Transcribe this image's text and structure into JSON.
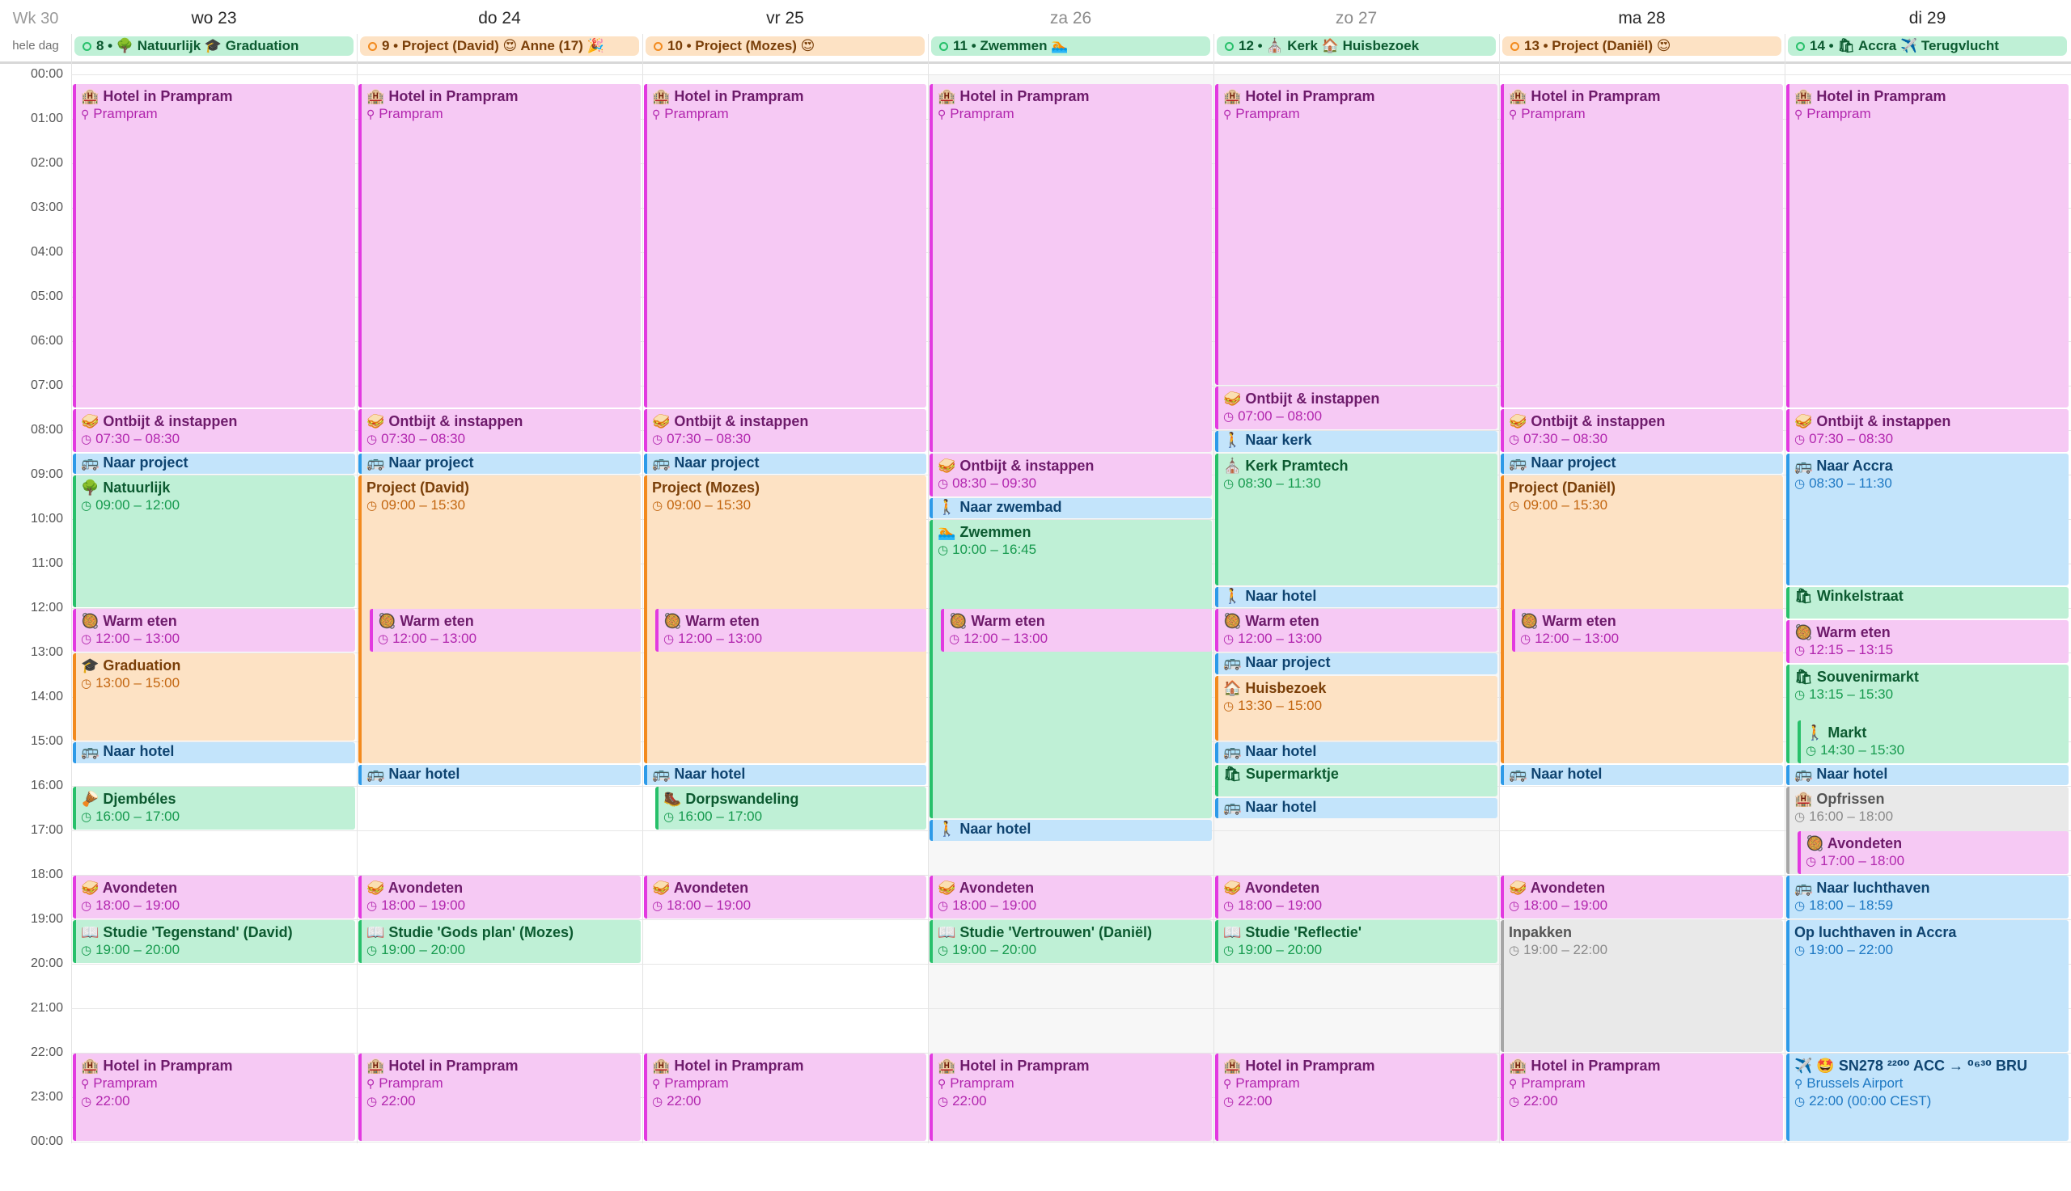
{
  "week_label": "Wk 30",
  "allday_label": "hele dag",
  "hour_labels": [
    "00:00",
    "01:00",
    "02:00",
    "03:00",
    "04:00",
    "05:00",
    "06:00",
    "07:00",
    "08:00",
    "09:00",
    "10:00",
    "11:00",
    "12:00",
    "13:00",
    "14:00",
    "15:00",
    "16:00",
    "17:00",
    "18:00",
    "19:00",
    "20:00",
    "21:00",
    "22:00",
    "23:00",
    "00:00"
  ],
  "colors": {
    "pink": "#f6c9f4",
    "orange": "#fde2c4",
    "green": "#bff0d6",
    "blue": "#c3e4fb",
    "gray": "#e9e9e9"
  },
  "days": [
    {
      "label": "wo 23",
      "weekend": false
    },
    {
      "label": "do 24",
      "weekend": false
    },
    {
      "label": "vr 25",
      "weekend": false
    },
    {
      "label": "za 26",
      "weekend": true
    },
    {
      "label": "zo 27",
      "weekend": true
    },
    {
      "label": "ma 28",
      "weekend": false
    },
    {
      "label": "di 29",
      "weekend": false
    }
  ],
  "allday_events": [
    {
      "day": 0,
      "color": "green",
      "title": "8 • 🌳 Natuurlijk 🎓 Graduation"
    },
    {
      "day": 1,
      "color": "orange",
      "title": "9 • Project (David) 😍 Anne (17) 🎉"
    },
    {
      "day": 2,
      "color": "orange",
      "title": "10 • Project (Mozes) 😍"
    },
    {
      "day": 3,
      "color": "green",
      "title": "11 • Zwemmen 🏊"
    },
    {
      "day": 4,
      "color": "green",
      "title": "12 • ⛪ Kerk 🏠 Huisbezoek"
    },
    {
      "day": 5,
      "color": "orange",
      "title": "13 • Project (Daniël) 😍"
    },
    {
      "day": 6,
      "color": "green",
      "title": "14 • 🛍 Accra ✈️ Terugvlucht"
    }
  ],
  "events": [
    {
      "day": 0,
      "start": 0.2,
      "end": 7.5,
      "color": "pink",
      "title": "🏨 Hotel in Prampram",
      "sub": "Prampram",
      "loc": true
    },
    {
      "day": 0,
      "start": 7.5,
      "end": 8.5,
      "color": "pink",
      "title": "🥪 Ontbijt & instappen",
      "sub": "07:30 – 08:30"
    },
    {
      "day": 0,
      "start": 8.5,
      "end": 9.0,
      "color": "blue",
      "title": "🚌 Naar project"
    },
    {
      "day": 0,
      "start": 9.0,
      "end": 12.0,
      "color": "green",
      "title": "🌳 Natuurlijk",
      "sub": "09:00 – 12:00"
    },
    {
      "day": 0,
      "start": 12.0,
      "end": 13.0,
      "color": "pink",
      "title": "🥘 Warm eten",
      "sub": "12:00 – 13:00"
    },
    {
      "day": 0,
      "start": 13.0,
      "end": 15.0,
      "color": "orange",
      "title": "🎓 Graduation",
      "sub": "13:00 – 15:00"
    },
    {
      "day": 0,
      "start": 15.0,
      "end": 15.5,
      "color": "blue",
      "title": "🚌 Naar hotel"
    },
    {
      "day": 0,
      "start": 16.0,
      "end": 17.0,
      "color": "green",
      "title": "🪘 Djembéles",
      "sub": "16:00 – 17:00"
    },
    {
      "day": 0,
      "start": 18.0,
      "end": 19.0,
      "color": "pink",
      "title": "🥪 Avondeten",
      "sub": "18:00 – 19:00"
    },
    {
      "day": 0,
      "start": 19.0,
      "end": 20.0,
      "color": "green",
      "title": "📖 Studie 'Tegenstand' (David)",
      "sub": "19:00 – 20:00"
    },
    {
      "day": 0,
      "start": 22.0,
      "end": 24.0,
      "color": "pink",
      "title": "🏨 Hotel in Prampram",
      "sub": "Prampram",
      "sub2": "22:00",
      "loc": true
    },
    {
      "day": 1,
      "start": 0.2,
      "end": 7.5,
      "color": "pink",
      "title": "🏨 Hotel in Prampram",
      "sub": "Prampram",
      "loc": true
    },
    {
      "day": 1,
      "start": 7.5,
      "end": 8.5,
      "color": "pink",
      "title": "🥪 Ontbijt & instappen",
      "sub": "07:30 – 08:30"
    },
    {
      "day": 1,
      "start": 8.5,
      "end": 9.0,
      "color": "blue",
      "title": "🚌 Naar project"
    },
    {
      "day": 1,
      "start": 9.0,
      "end": 15.5,
      "color": "orange",
      "title": "Project (David)",
      "sub": "09:00 – 15:30"
    },
    {
      "day": 1,
      "start": 12.0,
      "end": 13.0,
      "color": "pink",
      "title": "🥘 Warm eten",
      "sub": "12:00 – 13:00",
      "inset": true
    },
    {
      "day": 1,
      "start": 15.5,
      "end": 16.0,
      "color": "blue",
      "title": "🚌 Naar hotel"
    },
    {
      "day": 1,
      "start": 18.0,
      "end": 19.0,
      "color": "pink",
      "title": "🥪 Avondeten",
      "sub": "18:00 – 19:00"
    },
    {
      "day": 1,
      "start": 19.0,
      "end": 20.0,
      "color": "green",
      "title": "📖 Studie 'Gods plan' (Mozes)",
      "sub": "19:00 – 20:00"
    },
    {
      "day": 1,
      "start": 22.0,
      "end": 24.0,
      "color": "pink",
      "title": "🏨 Hotel in Prampram",
      "sub": "Prampram",
      "sub2": "22:00",
      "loc": true
    },
    {
      "day": 2,
      "start": 0.2,
      "end": 7.5,
      "color": "pink",
      "title": "🏨 Hotel in Prampram",
      "sub": "Prampram",
      "loc": true
    },
    {
      "day": 2,
      "start": 7.5,
      "end": 8.5,
      "color": "pink",
      "title": "🥪 Ontbijt & instappen",
      "sub": "07:30 – 08:30"
    },
    {
      "day": 2,
      "start": 8.5,
      "end": 9.0,
      "color": "blue",
      "title": "🚌 Naar project"
    },
    {
      "day": 2,
      "start": 9.0,
      "end": 15.5,
      "color": "orange",
      "title": "Project (Mozes)",
      "sub": "09:00 – 15:30"
    },
    {
      "day": 2,
      "start": 12.0,
      "end": 13.0,
      "color": "pink",
      "title": "🥘 Warm eten",
      "sub": "12:00 – 13:00",
      "inset": true
    },
    {
      "day": 2,
      "start": 15.5,
      "end": 16.0,
      "color": "blue",
      "title": "🚌 Naar hotel"
    },
    {
      "day": 2,
      "start": 16.0,
      "end": 17.0,
      "color": "green",
      "title": "🥾 Dorpswandeling",
      "sub": "16:00 – 17:00",
      "inset": true
    },
    {
      "day": 2,
      "start": 18.0,
      "end": 19.0,
      "color": "pink",
      "title": "🥪 Avondeten",
      "sub": "18:00 – 19:00"
    },
    {
      "day": 2,
      "start": 22.0,
      "end": 24.0,
      "color": "pink",
      "title": "🏨 Hotel in Prampram",
      "sub": "Prampram",
      "sub2": "22:00",
      "loc": true
    },
    {
      "day": 3,
      "start": 0.2,
      "end": 8.5,
      "color": "pink",
      "title": "🏨 Hotel in Prampram",
      "sub": "Prampram",
      "loc": true
    },
    {
      "day": 3,
      "start": 8.5,
      "end": 9.5,
      "color": "pink",
      "title": "🥪 Ontbijt & instappen",
      "sub": "08:30 – 09:30"
    },
    {
      "day": 3,
      "start": 9.5,
      "end": 10.0,
      "color": "blue",
      "title": "🚶 Naar zwembad"
    },
    {
      "day": 3,
      "start": 10.0,
      "end": 16.75,
      "color": "green",
      "title": "🏊 Zwemmen",
      "sub": "10:00 – 16:45"
    },
    {
      "day": 3,
      "start": 12.0,
      "end": 13.0,
      "color": "pink",
      "title": "🥘 Warm eten",
      "sub": "12:00 – 13:00",
      "inset": true
    },
    {
      "day": 3,
      "start": 16.75,
      "end": 17.25,
      "color": "blue",
      "title": "🚶 Naar hotel"
    },
    {
      "day": 3,
      "start": 18.0,
      "end": 19.0,
      "color": "pink",
      "title": "🥪 Avondeten",
      "sub": "18:00 – 19:00"
    },
    {
      "day": 3,
      "start": 19.0,
      "end": 20.0,
      "color": "green",
      "title": "📖 Studie 'Vertrouwen' (Daniël)",
      "sub": "19:00 – 20:00"
    },
    {
      "day": 3,
      "start": 22.0,
      "end": 24.0,
      "color": "pink",
      "title": "🏨 Hotel in Prampram",
      "sub": "Prampram",
      "sub2": "22:00",
      "loc": true
    },
    {
      "day": 4,
      "start": 0.2,
      "end": 7.0,
      "color": "pink",
      "title": "🏨 Hotel in Prampram",
      "sub": "Prampram",
      "loc": true
    },
    {
      "day": 4,
      "start": 7.0,
      "end": 8.0,
      "color": "pink",
      "title": "🥪 Ontbijt & instappen",
      "sub": "07:00 – 08:00"
    },
    {
      "day": 4,
      "start": 8.0,
      "end": 8.5,
      "color": "blue",
      "title": "🚶 Naar kerk"
    },
    {
      "day": 4,
      "start": 8.5,
      "end": 11.5,
      "color": "green",
      "title": "⛪ Kerk Pramtech",
      "sub": "08:30 – 11:30"
    },
    {
      "day": 4,
      "start": 11.5,
      "end": 12.0,
      "color": "blue",
      "title": "🚶 Naar hotel"
    },
    {
      "day": 4,
      "start": 12.0,
      "end": 13.0,
      "color": "pink",
      "title": "🥘 Warm eten",
      "sub": "12:00 – 13:00"
    },
    {
      "day": 4,
      "start": 13.0,
      "end": 13.5,
      "color": "blue",
      "title": "🚌 Naar project"
    },
    {
      "day": 4,
      "start": 13.5,
      "end": 15.0,
      "color": "orange",
      "title": "🏠 Huisbezoek",
      "sub": "13:30 – 15:00"
    },
    {
      "day": 4,
      "start": 15.0,
      "end": 15.5,
      "color": "blue",
      "title": "🚌 Naar hotel"
    },
    {
      "day": 4,
      "start": 15.5,
      "end": 16.25,
      "color": "green",
      "title": "🛍 Supermarktje"
    },
    {
      "day": 4,
      "start": 16.25,
      "end": 16.75,
      "color": "blue",
      "title": "🚌 Naar hotel"
    },
    {
      "day": 4,
      "start": 18.0,
      "end": 19.0,
      "color": "pink",
      "title": "🥪 Avondeten",
      "sub": "18:00 – 19:00"
    },
    {
      "day": 4,
      "start": 19.0,
      "end": 20.0,
      "color": "green",
      "title": "📖 Studie 'Reflectie'",
      "sub": "19:00 – 20:00"
    },
    {
      "day": 4,
      "start": 22.0,
      "end": 24.0,
      "color": "pink",
      "title": "🏨 Hotel in Prampram",
      "sub": "Prampram",
      "sub2": "22:00",
      "loc": true
    },
    {
      "day": 5,
      "start": 0.2,
      "end": 7.5,
      "color": "pink",
      "title": "🏨 Hotel in Prampram",
      "sub": "Prampram",
      "loc": true
    },
    {
      "day": 5,
      "start": 7.5,
      "end": 8.5,
      "color": "pink",
      "title": "🥪 Ontbijt & instappen",
      "sub": "07:30 – 08:30"
    },
    {
      "day": 5,
      "start": 8.5,
      "end": 9.0,
      "color": "blue",
      "title": "🚌 Naar project"
    },
    {
      "day": 5,
      "start": 9.0,
      "end": 15.5,
      "color": "orange",
      "title": "Project (Daniël)",
      "sub": "09:00 – 15:30"
    },
    {
      "day": 5,
      "start": 12.0,
      "end": 13.0,
      "color": "pink",
      "title": "🥘 Warm eten",
      "sub": "12:00 – 13:00",
      "inset": true
    },
    {
      "day": 5,
      "start": 15.5,
      "end": 16.0,
      "color": "blue",
      "title": "🚌 Naar hotel"
    },
    {
      "day": 5,
      "start": 18.0,
      "end": 19.0,
      "color": "pink",
      "title": "🥪 Avondeten",
      "sub": "18:00 – 19:00"
    },
    {
      "day": 5,
      "start": 19.0,
      "end": 22.0,
      "color": "gray",
      "title": "Inpakken",
      "sub": "19:00 – 22:00",
      "plain": true
    },
    {
      "day": 5,
      "start": 22.0,
      "end": 24.0,
      "color": "pink",
      "title": "🏨 Hotel in Prampram",
      "sub": "Prampram",
      "sub2": "22:00",
      "loc": true
    },
    {
      "day": 6,
      "start": 0.2,
      "end": 7.5,
      "color": "pink",
      "title": "🏨 Hotel in Prampram",
      "sub": "Prampram",
      "loc": true
    },
    {
      "day": 6,
      "start": 7.5,
      "end": 8.5,
      "color": "pink",
      "title": "🥪 Ontbijt & instappen",
      "sub": "07:30 – 08:30"
    },
    {
      "day": 6,
      "start": 8.5,
      "end": 11.5,
      "color": "blue",
      "title": "🚌 Naar Accra",
      "sub": "08:30 – 11:30"
    },
    {
      "day": 6,
      "start": 11.5,
      "end": 12.25,
      "color": "green",
      "title": "🛍 Winkelstraat"
    },
    {
      "day": 6,
      "start": 12.25,
      "end": 13.25,
      "color": "pink",
      "title": "🥘 Warm eten",
      "sub": "12:15 – 13:15"
    },
    {
      "day": 6,
      "start": 13.25,
      "end": 15.5,
      "color": "green",
      "title": "🛍 Souvenirmarkt",
      "sub": "13:15 – 15:30"
    },
    {
      "day": 6,
      "start": 14.5,
      "end": 15.5,
      "color": "green",
      "title": "🚶 Markt",
      "sub": "14:30 – 15:30",
      "inset": true
    },
    {
      "day": 6,
      "start": 15.5,
      "end": 16.0,
      "color": "blue",
      "title": "🚌 Naar hotel"
    },
    {
      "day": 6,
      "start": 16.0,
      "end": 18.0,
      "color": "gray",
      "title": "🏨 Opfrissen",
      "sub": "16:00 – 18:00"
    },
    {
      "day": 6,
      "start": 17.0,
      "end": 18.0,
      "color": "pink",
      "title": "🥘 Avondeten",
      "sub": "17:00 – 18:00",
      "inset": true
    },
    {
      "day": 6,
      "start": 18.0,
      "end": 19.0,
      "color": "blue",
      "title": "🚌 Naar luchthaven",
      "sub": "18:00 – 18:59"
    },
    {
      "day": 6,
      "start": 19.0,
      "end": 22.0,
      "color": "blue",
      "title": "Op luchthaven in Accra",
      "sub": "19:00 – 22:00"
    },
    {
      "day": 6,
      "start": 22.0,
      "end": 24.0,
      "color": "blue",
      "title": "✈️ 🤩 SN278 ²²⁰⁰ ACC → ⁰⁶³⁰ BRU",
      "sub": "Brussels Airport",
      "sub2": "22:00 (00:00 CEST)",
      "loc": true
    }
  ]
}
